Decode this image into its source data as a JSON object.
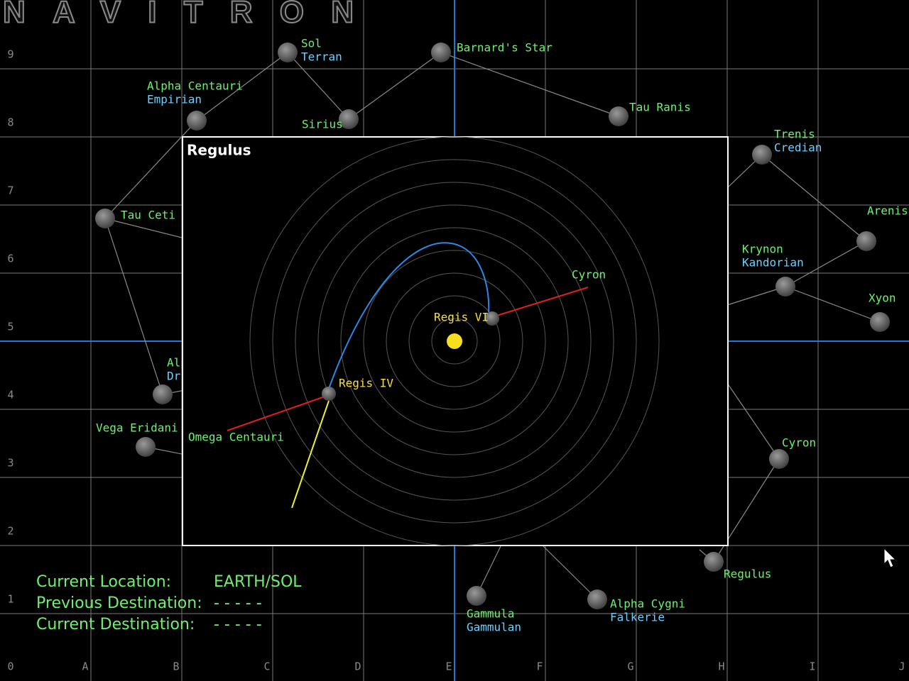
{
  "header": {
    "title": "NAVITRON"
  },
  "grid": {
    "columns": [
      "0",
      "A",
      "B",
      "C",
      "D",
      "E",
      "F",
      "G",
      "H",
      "I",
      "J"
    ],
    "rows": [
      "9",
      "8",
      "7",
      "6",
      "5",
      "4",
      "3",
      "2",
      "1"
    ]
  },
  "systems": [
    {
      "name": "Sol",
      "race": "Terran"
    },
    {
      "name": "Barnard's Star"
    },
    {
      "name": "Alpha Centauri",
      "race": "Empirian"
    },
    {
      "name": "Sirius"
    },
    {
      "name": "Tau Ranis"
    },
    {
      "name": "Trenis",
      "race": "Credian"
    },
    {
      "name": "Tau Ceti"
    },
    {
      "name": "Arenis"
    },
    {
      "name": "Krynon",
      "race": "Kandorian"
    },
    {
      "name": "Xyon"
    },
    {
      "name": "Alp",
      "race": "Dr"
    },
    {
      "name": "Vega Eridani"
    },
    {
      "name": "Cyron"
    },
    {
      "name": "Regulus"
    },
    {
      "name": "Gammula",
      "race": "Gammulan"
    },
    {
      "name": "Alpha Cygni",
      "race": "Falkerie"
    }
  ],
  "panel": {
    "title": "Regulus",
    "planets": [
      {
        "name": "Regis VI"
      },
      {
        "name": "Regis IV"
      }
    ],
    "routes": [
      {
        "name": "Cyron"
      },
      {
        "name": "Omega Centauri"
      }
    ]
  },
  "status": [
    {
      "label": "Current Location:",
      "value": "EARTH/SOL"
    },
    {
      "label": "Previous Destination:",
      "value": "- - - - -"
    },
    {
      "label": "Current Destination:",
      "value": "- - - - -"
    }
  ]
}
